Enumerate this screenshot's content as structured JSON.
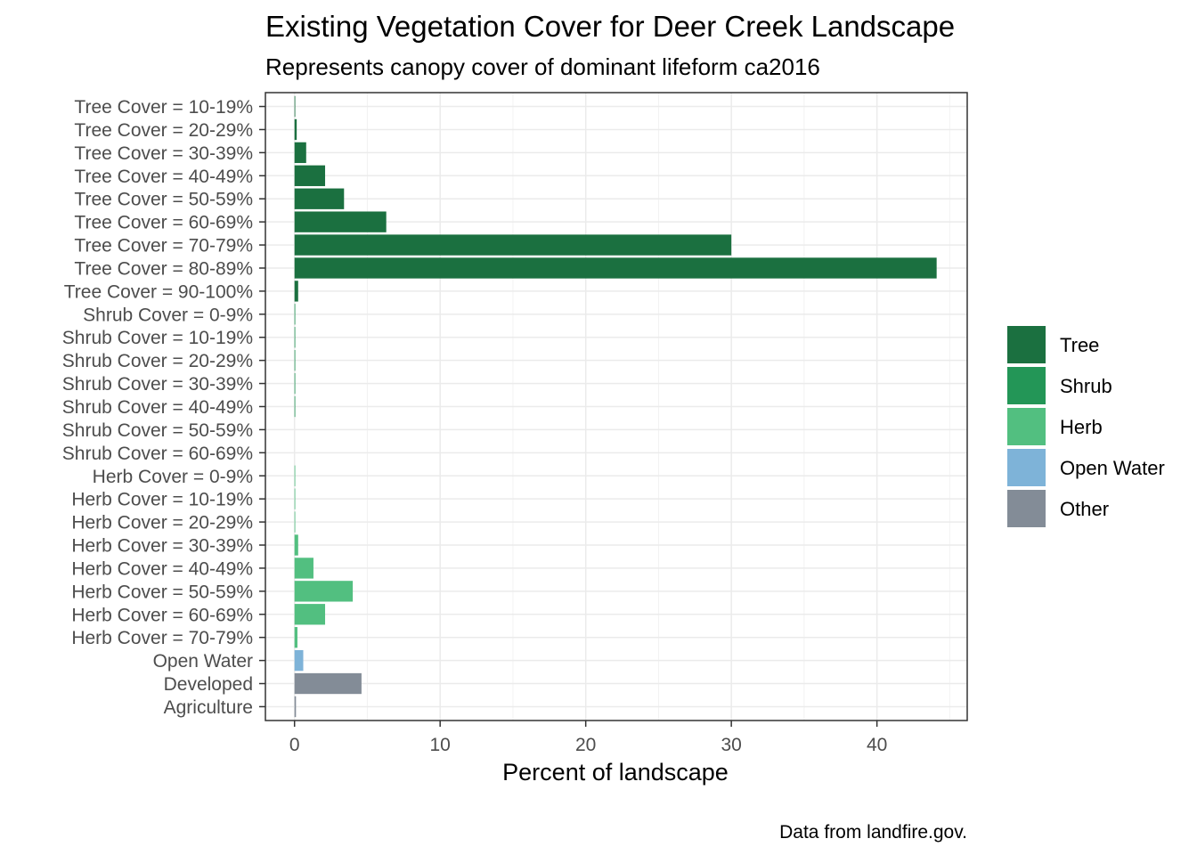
{
  "chart_data": {
    "type": "bar",
    "orientation": "horizontal",
    "title": "Existing Vegetation Cover for Deer Creek Landscape",
    "subtitle": "Represents canopy cover of dominant lifeform ca2016",
    "xlabel": "Percent of landscape",
    "ylabel": "",
    "caption": "Data from landfire.gov.",
    "xlim": [
      -2,
      46.2
    ],
    "xticks": [
      0,
      10,
      20,
      30,
      40
    ],
    "grid": true,
    "legend_position": "right",
    "categories": [
      "Tree Cover = 10-19%",
      "Tree Cover = 20-29%",
      "Tree Cover = 30-39%",
      "Tree Cover = 40-49%",
      "Tree Cover = 50-59%",
      "Tree Cover = 60-69%",
      "Tree Cover = 70-79%",
      "Tree Cover = 80-89%",
      "Tree Cover = 90-100%",
      "Shrub Cover = 0-9%",
      "Shrub Cover = 10-19%",
      "Shrub Cover = 20-29%",
      "Shrub Cover = 30-39%",
      "Shrub Cover = 40-49%",
      "Shrub Cover = 50-59%",
      "Shrub Cover = 60-69%",
      "Herb Cover = 0-9%",
      "Herb Cover = 10-19%",
      "Herb Cover = 20-29%",
      "Herb Cover = 30-39%",
      "Herb Cover = 40-49%",
      "Herb Cover = 50-59%",
      "Herb Cover = 60-69%",
      "Herb Cover = 70-79%",
      "Open Water",
      "Developed",
      "Agriculture"
    ],
    "values": [
      0.05,
      0.15,
      0.8,
      2.1,
      3.4,
      6.3,
      30.0,
      44.1,
      0.25,
      0.05,
      0.05,
      0.05,
      0.05,
      0.05,
      0.0,
      0.0,
      0.05,
      0.05,
      0.05,
      0.25,
      1.3,
      4.0,
      2.1,
      0.2,
      0.6,
      4.6,
      0.1
    ],
    "groups": [
      "Tree",
      "Tree",
      "Tree",
      "Tree",
      "Tree",
      "Tree",
      "Tree",
      "Tree",
      "Tree",
      "Shrub",
      "Shrub",
      "Shrub",
      "Shrub",
      "Shrub",
      "Shrub",
      "Shrub",
      "Herb",
      "Herb",
      "Herb",
      "Herb",
      "Herb",
      "Herb",
      "Herb",
      "Herb",
      "Open Water",
      "Other",
      "Other"
    ],
    "legend": [
      {
        "name": "Tree",
        "color": "#1b7040"
      },
      {
        "name": "Shrub",
        "color": "#239657"
      },
      {
        "name": "Herb",
        "color": "#52bf80"
      },
      {
        "name": "Open Water",
        "color": "#7eb3d8"
      },
      {
        "name": "Other",
        "color": "#838c97"
      }
    ]
  }
}
